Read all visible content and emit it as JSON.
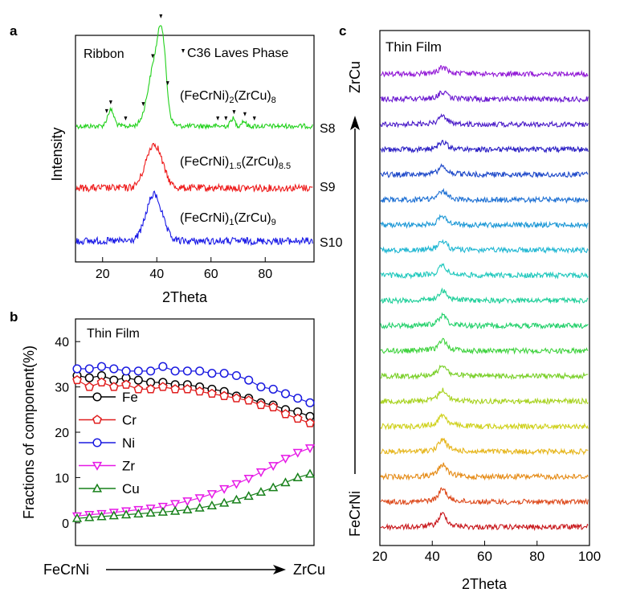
{
  "panels": {
    "a": {
      "label": "a",
      "chart_data": {
        "type": "line",
        "title": "Ribbon",
        "xlabel": "2Theta",
        "ylabel": "Intensity",
        "xlim": [
          10,
          98
        ],
        "xticks": [
          20,
          40,
          60,
          80
        ],
        "legend_note": "C36 Laves Phase",
        "peak_markers": [
          21.5,
          23,
          28.5,
          35,
          38.5,
          41.5,
          44,
          62.5,
          65.5,
          68.5,
          72.5,
          76
        ],
        "series": [
          {
            "name": "S8",
            "formula": [
              "(FeCrNi)",
              "2",
              "(ZrCu)",
              "8"
            ],
            "color": "#22d11c",
            "peaks": [
              [
                23,
                0.25,
                1.2
              ],
              [
                39.5,
                1.0,
                2.6
              ],
              [
                42,
                0.9,
                1.4
              ],
              [
                68,
                0.12,
                0.8
              ],
              [
                72,
                0.08,
                0.8
              ]
            ]
          },
          {
            "name": "S9",
            "formula": [
              "(FeCrNi)",
              "1.5",
              "(ZrCu)",
              "8.5"
            ],
            "color": "#ee1a1a",
            "peaks": [
              [
                39,
                1.0,
                3.0
              ]
            ]
          },
          {
            "name": "S10",
            "formula": [
              "(FeCrNi)",
              "1",
              "(ZrCu)",
              "9"
            ],
            "color": "#1a1ae6",
            "peaks": [
              [
                39,
                1.0,
                2.9
              ]
            ]
          }
        ]
      }
    },
    "b": {
      "label": "b",
      "chart_data": {
        "type": "line",
        "title": "Thin Film",
        "ylabel": "Fractions of component(%)",
        "xlabel_left": "FeCrNi",
        "xlabel_right": "ZrCu",
        "ylim": [
          -5,
          45
        ],
        "yticks": [
          0,
          10,
          20,
          30,
          40
        ],
        "series": [
          {
            "name": "Fe",
            "color": "#000000",
            "marker": "circle",
            "values": [
              32.5,
              32,
              32.5,
              31.5,
              32,
              31.5,
              31,
              31,
              30.5,
              30.5,
              30,
              29.5,
              29,
              28,
              27.5,
              26.5,
              26,
              25,
              24.5,
              23.5
            ]
          },
          {
            "name": "Cr",
            "color": "#e01e1e",
            "marker": "pentagon",
            "values": [
              31.5,
              30,
              31,
              30,
              30.5,
              29.5,
              29.5,
              30,
              29.5,
              29.5,
              29,
              28.5,
              28,
              27.5,
              27,
              26,
              25.5,
              24,
              23,
              22
            ]
          },
          {
            "name": "Ni",
            "color": "#1a1ae0",
            "marker": "circle",
            "values": [
              34,
              34,
              34.5,
              34,
              33.5,
              33.5,
              33.5,
              34.5,
              33.5,
              33.5,
              33.5,
              33,
              33,
              32.5,
              31.5,
              30,
              29.5,
              28.5,
              27.5,
              26.5
            ]
          },
          {
            "name": "Zr",
            "color": "#e619e6",
            "marker": "triangle-down",
            "values": [
              1.5,
              1.8,
              2,
              2.3,
              2.6,
              2.9,
              3.2,
              3.6,
              4.2,
              4.8,
              5.5,
              6.4,
              7.5,
              8.6,
              9.8,
              11.2,
              12.6,
              14.2,
              15.5,
              16.5
            ]
          },
          {
            "name": "Cu",
            "color": "#17801a",
            "marker": "triangle-up",
            "values": [
              1.0,
              1.2,
              1.4,
              1.6,
              1.8,
              2.0,
              2.2,
              2.4,
              2.6,
              2.9,
              3.3,
              3.8,
              4.4,
              5.1,
              5.9,
              6.8,
              7.8,
              8.9,
              10,
              10.8
            ]
          }
        ]
      }
    },
    "c": {
      "label": "c",
      "chart_data": {
        "type": "line",
        "title": "Thin Film",
        "xlabel": "2Theta",
        "xlim": [
          20,
          100
        ],
        "xticks": [
          20,
          40,
          60,
          80,
          100
        ],
        "y_bottom_label": "FeCrNi",
        "y_top_label": "ZrCu",
        "peak_center": 44,
        "series_colors": [
          "#c8161a",
          "#dd4a1c",
          "#e58a14",
          "#e6b51a",
          "#cfd11c",
          "#a7d21e",
          "#78cf26",
          "#3ed23d",
          "#22d06a",
          "#1fcf9a",
          "#20c8bd",
          "#1fb6d2",
          "#1d98d6",
          "#1c6fd3",
          "#1a46c8",
          "#2a1ec4",
          "#4a1bc8",
          "#6a18d0",
          "#9218d6"
        ]
      }
    }
  }
}
